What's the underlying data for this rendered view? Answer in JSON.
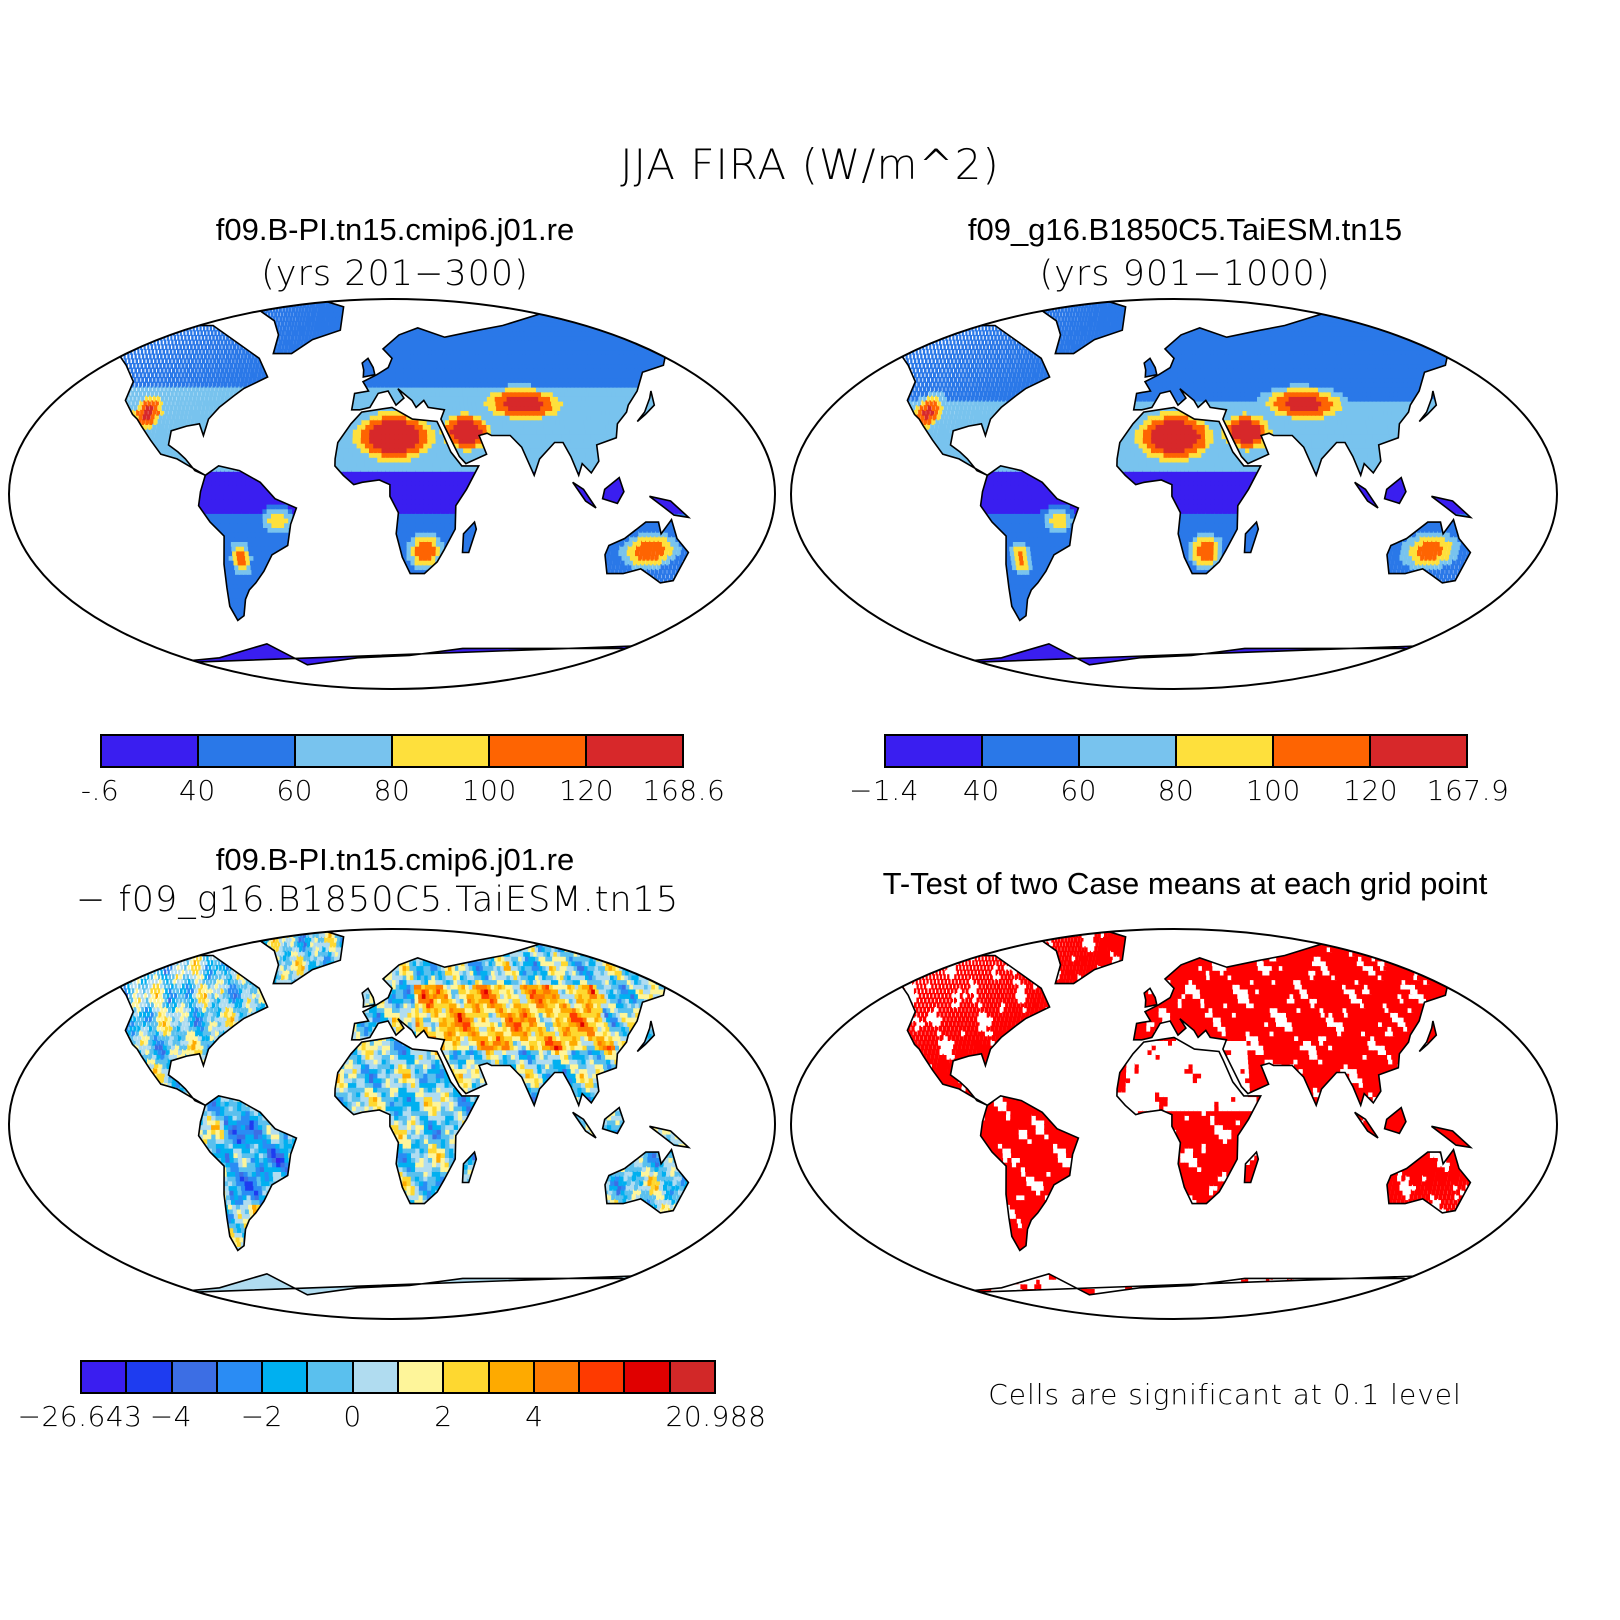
{
  "title": "JJA FIRA (W/m^2)",
  "panels": {
    "case1": {
      "name": "f09.B-PI.tn15.cmip6.j01.re",
      "years": "(yrs 201−300)"
    },
    "case2": {
      "name": "f09_g16.B1850C5.TaiESM.tn15",
      "years": "(yrs 901−1000)"
    },
    "diff": {
      "line1": "f09.B-PI.tn15.cmip6.j01.re",
      "line2": "− f09_g16.B1850C5.TaiESM.tn15"
    },
    "ttest": {
      "title": "T-Test of two Case means at each grid point",
      "note": "Cells are significant at 0.1 level"
    }
  },
  "colorbars": {
    "case1": {
      "colors": [
        "#3a1ef0",
        "#2a78e8",
        "#78c3ee",
        "#fee03c",
        "#fe6402",
        "#d7282a"
      ],
      "labels": [
        "-.6",
        "40",
        "60",
        "80",
        "100",
        "120",
        "168.6"
      ]
    },
    "case2": {
      "colors": [
        "#3a1ef0",
        "#2a78e8",
        "#78c3ee",
        "#fee03c",
        "#fe6402",
        "#d7282a"
      ],
      "labels": [
        "−1.4",
        "40",
        "60",
        "80",
        "100",
        "120",
        "167.9"
      ]
    },
    "diff": {
      "colors": [
        "#3a1ef0",
        "#1e3cf0",
        "#3c6ee4",
        "#2a8cf4",
        "#00b0f0",
        "#5ac0ee",
        "#b0dcf0",
        "#fef59a",
        "#fed830",
        "#feaa00",
        "#fe7a00",
        "#fe3a00",
        "#e00000",
        "#d22828"
      ],
      "labels": [
        "−26.643",
        "",
        "−4",
        "",
        "−2",
        "",
        "0",
        "",
        "2",
        "",
        "4",
        "",
        "",
        "",
        "20.988"
      ]
    }
  },
  "map_colors": {
    "ocean": "#ffffff",
    "coast": "#000000",
    "significant": "#ff0000"
  }
}
